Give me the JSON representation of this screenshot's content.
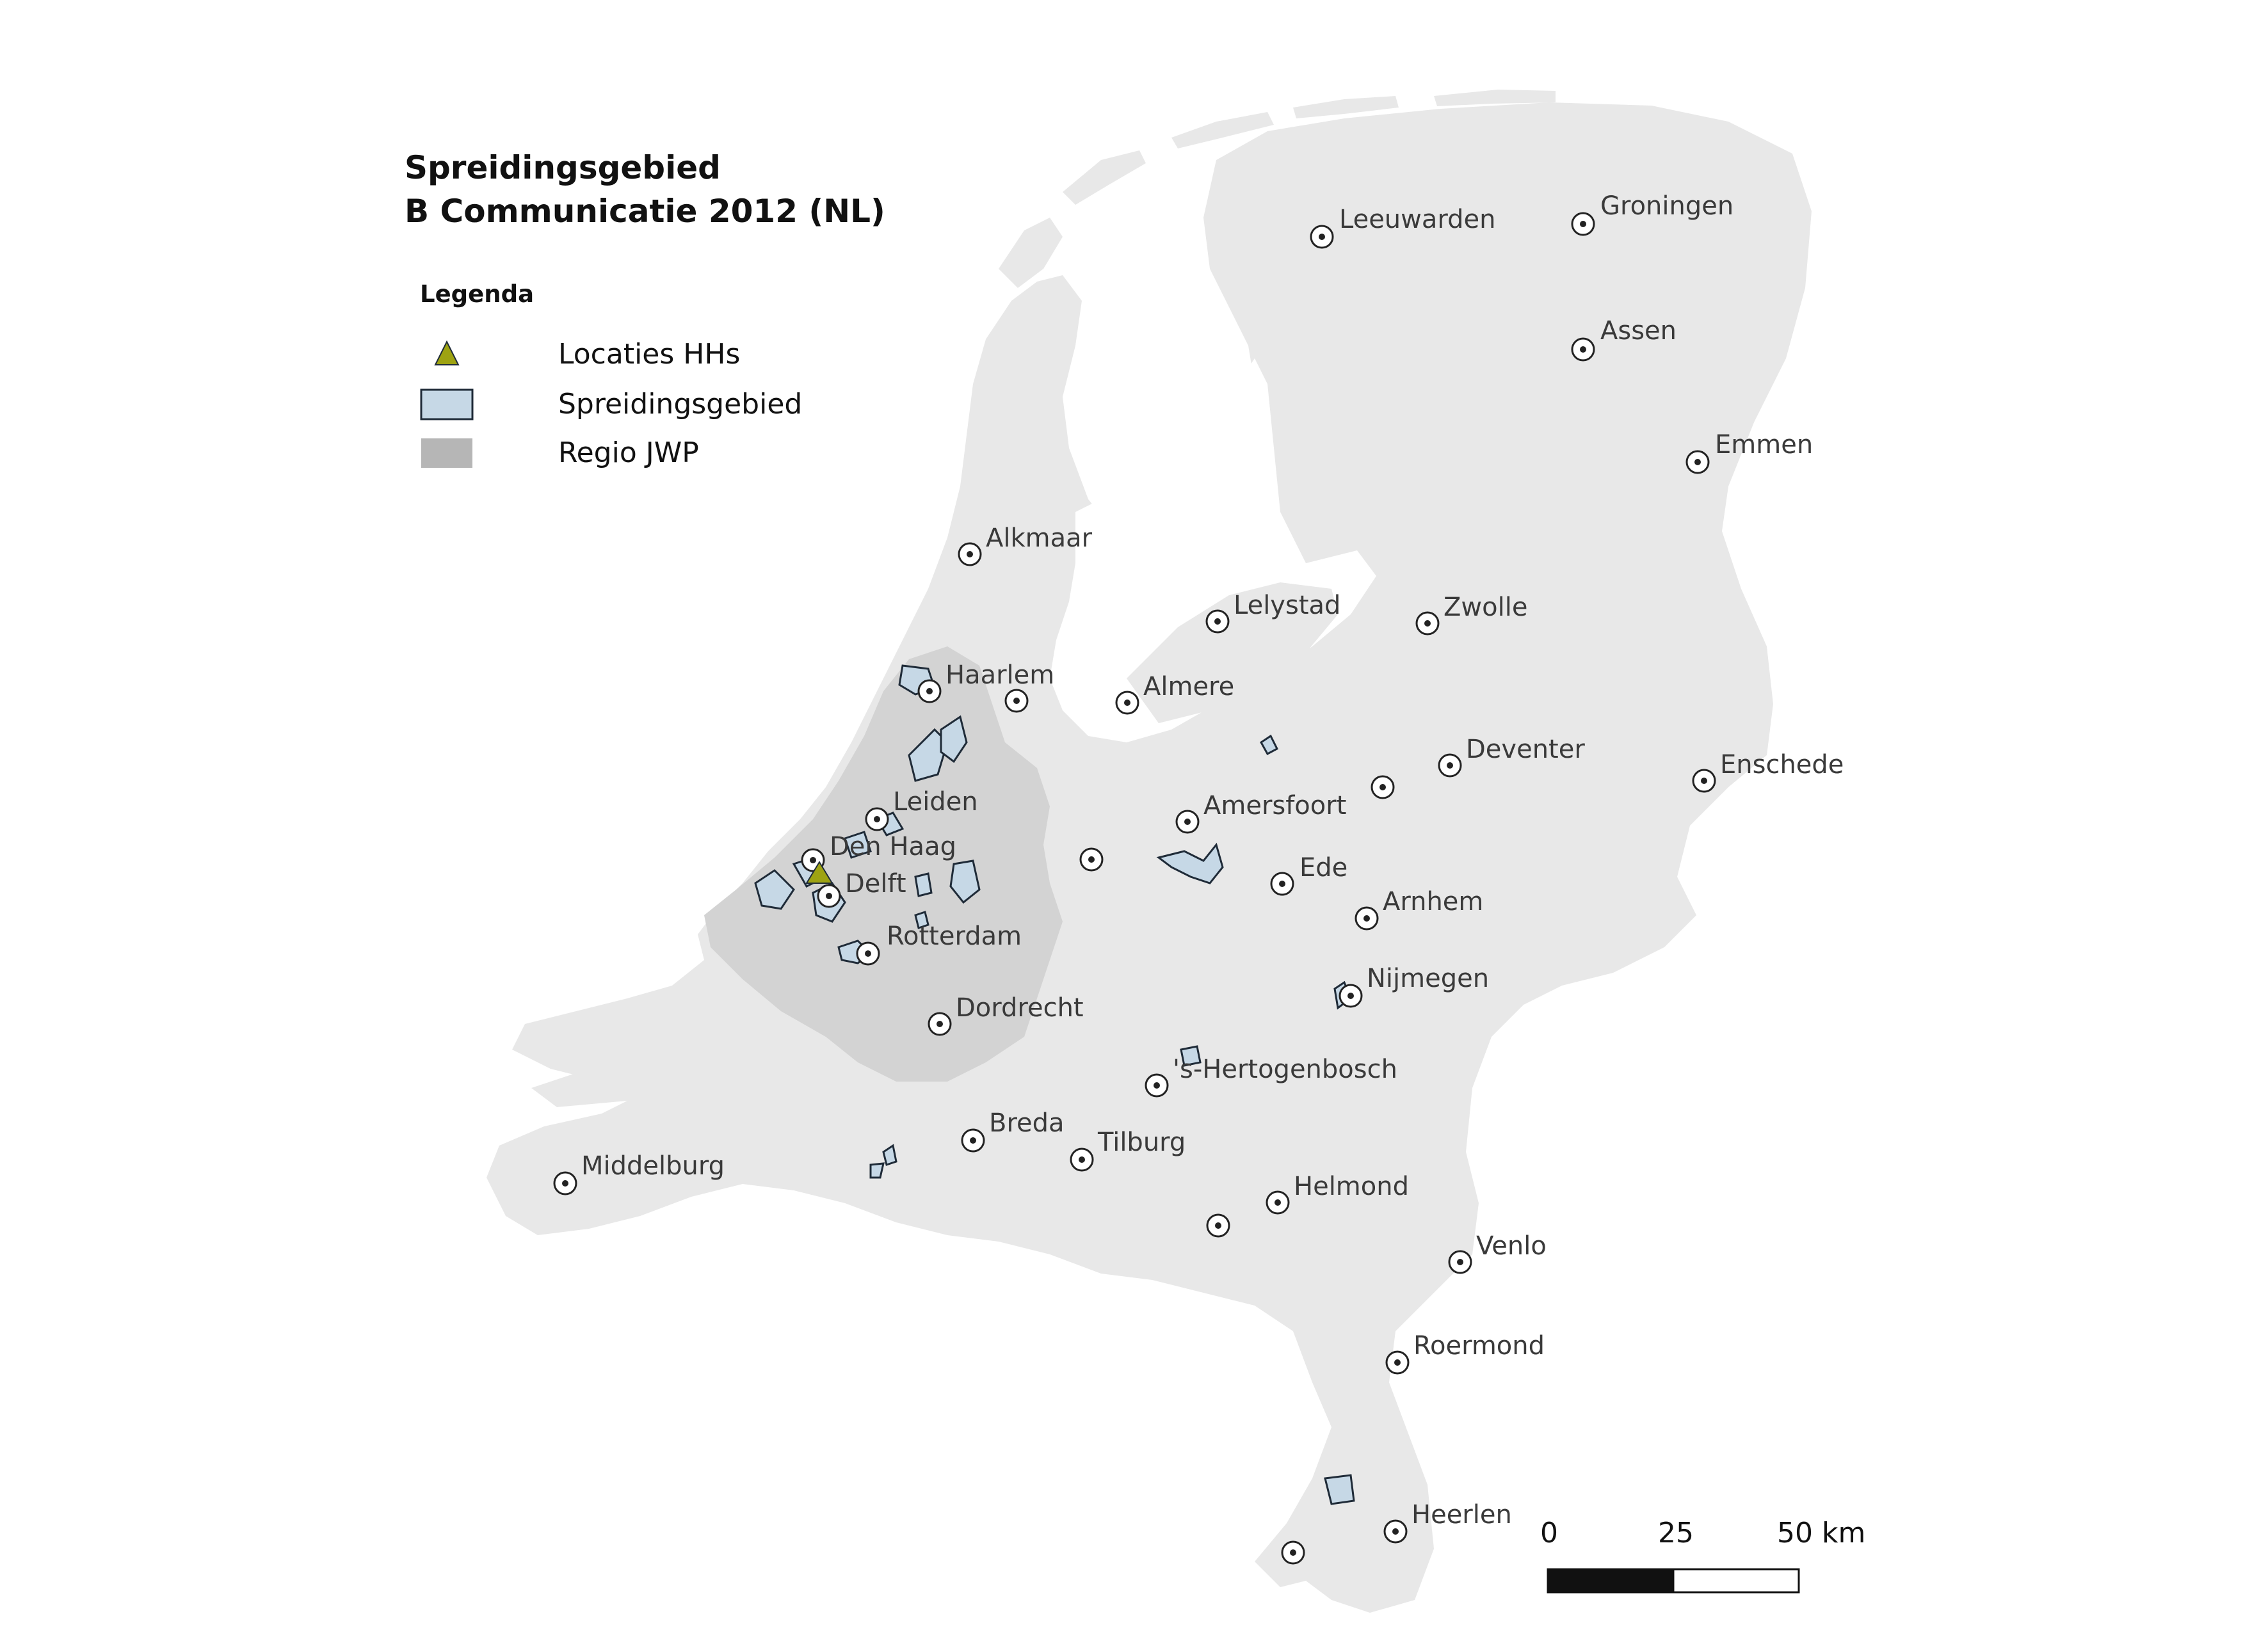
{
  "title": {
    "line1": "Spreidingsgebied",
    "line2": "B Communicatie 2012 (NL)"
  },
  "legend": {
    "title": "Legenda",
    "items": [
      {
        "label": "Locaties HHs",
        "symbol": "triangle",
        "color": "#9ea312"
      },
      {
        "label": "Spreidingsgebied",
        "symbol": "polygon",
        "color": "#c6d8e6"
      },
      {
        "label": "Regio JWP",
        "symbol": "polygon",
        "color": "#b6b6b6"
      }
    ]
  },
  "cities": [
    {
      "name": "Leeuwarden"
    },
    {
      "name": "Groningen"
    },
    {
      "name": "Assen"
    },
    {
      "name": "Emmen"
    },
    {
      "name": "Alkmaar"
    },
    {
      "name": "Lelystad"
    },
    {
      "name": "Zwolle"
    },
    {
      "name": "Haarlem"
    },
    {
      "name": "Almere"
    },
    {
      "name": "Deventer"
    },
    {
      "name": "Enschede"
    },
    {
      "name": "Leiden"
    },
    {
      "name": "Amersfoort"
    },
    {
      "name": "Den Haag"
    },
    {
      "name": "Delft"
    },
    {
      "name": "Ede"
    },
    {
      "name": "Arnhem"
    },
    {
      "name": "Rotterdam"
    },
    {
      "name": "Nijmegen"
    },
    {
      "name": "Dordrecht"
    },
    {
      "name": "'s-Hertogenbosch"
    },
    {
      "name": "Breda"
    },
    {
      "name": "Tilburg"
    },
    {
      "name": "Middelburg"
    },
    {
      "name": "Helmond"
    },
    {
      "name": "Venlo"
    },
    {
      "name": "Roermond"
    },
    {
      "name": "Heerlen"
    }
  ],
  "scale_bar": {
    "labels": [
      "0",
      "25",
      "50 km"
    ]
  },
  "colors": {
    "land": "#e8e8e8",
    "region": "#d3d3d3",
    "spread": "#c6d8e6",
    "outline": "#1f2b38"
  }
}
